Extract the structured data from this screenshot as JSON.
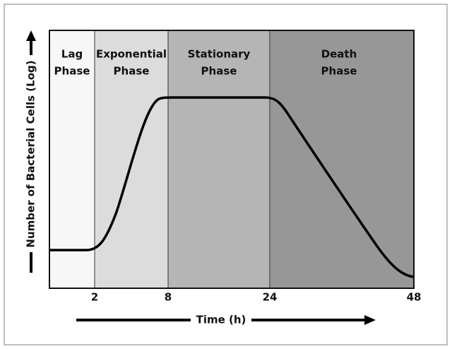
{
  "title_y": "Number of Bacterial Cells (Log)",
  "title_x": "Time (h)",
  "phases": [
    {
      "lines": [
        "Lag",
        "Phase"
      ]
    },
    {
      "lines": [
        "Exponential",
        "Phase"
      ]
    },
    {
      "lines": [
        "Stationary",
        "Phase"
      ]
    },
    {
      "lines": [
        "Death",
        "Phase"
      ]
    }
  ],
  "x_ticks": [
    "2",
    "8",
    "24",
    "48"
  ]
}
